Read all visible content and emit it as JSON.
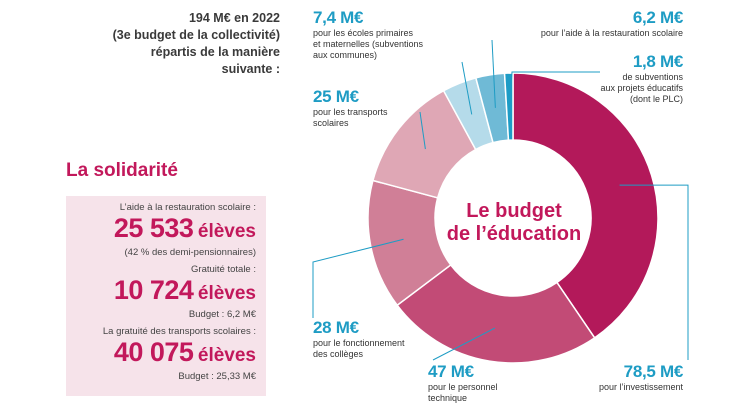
{
  "intro": {
    "line1": "194 M€ en 2022",
    "line2": "(3e budget de la collectivité)",
    "line3": "répartis de la manière",
    "line4": "suivante :"
  },
  "solidarity": {
    "title": "La solidarité",
    "blocks": [
      {
        "label": "L’aide à la restauration scolaire :",
        "number": "25 533",
        "unit": "élèves",
        "note": "(42 % des demi-pensionnaires)"
      },
      {
        "label": "Gratuité totale :",
        "number": "10 724",
        "unit": "élèves",
        "note": "Budget : 6,2 M€"
      },
      {
        "label": "La gratuité des transports scolaires :",
        "number": "40 075",
        "unit": "élèves",
        "note": "Budget : 25,33 M€"
      }
    ]
  },
  "chart_data": {
    "type": "pie",
    "variant": "donut",
    "center_text": [
      "Le budget",
      "de l’éducation"
    ],
    "unit": "M€",
    "slices": [
      {
        "value": 78.5,
        "label": "78,5 M€",
        "desc": [
          "pour l’investissement"
        ],
        "color": "#b3195a"
      },
      {
        "value": 47,
        "label": "47 M€",
        "desc": [
          "pour le personnel",
          "technique"
        ],
        "color": "#c24b76"
      },
      {
        "value": 28,
        "label": "28 M€",
        "desc": [
          "pour le fonctionnement",
          "des collèges"
        ],
        "color": "#d07f97"
      },
      {
        "value": 25,
        "label": "25 M€",
        "desc": [
          "pour les transports",
          "scolaires"
        ],
        "color": "#dfa7b5"
      },
      {
        "value": 7.4,
        "label": "7,4 M€",
        "desc": [
          "pour les écoles primaires",
          "et maternelles (subventions",
          "aux communes)"
        ],
        "color": "#b5dbea"
      },
      {
        "value": 6.2,
        "label": "6,2 M€",
        "desc": [
          "pour l’aide à la restauration scolaire"
        ],
        "color": "#6fbad6"
      },
      {
        "value": 1.8,
        "label": "1,8 M€",
        "desc": [
          "de subventions",
          "aux projets éducatifs",
          "(dont le PLC)"
        ],
        "color": "#1d9cc6"
      }
    ],
    "leader_color": "#1e9cc4"
  }
}
